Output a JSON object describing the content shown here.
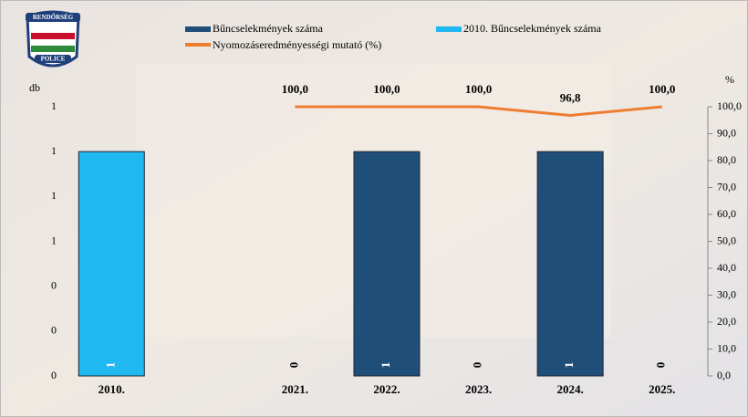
{
  "chart_data": {
    "type": "bar_line",
    "categories": [
      "2010.",
      null,
      "2021.",
      "2022.",
      "2023.",
      "2024.",
      "2025."
    ],
    "series": [
      {
        "name": "Bűncselekmények száma",
        "type": "bar",
        "color": "#1f4e79",
        "values": [
          null,
          null,
          0,
          1,
          0,
          1,
          0
        ]
      },
      {
        "name": "2010. Bűncselekmények száma",
        "type": "bar",
        "color": "#1fb8f0",
        "values": [
          1,
          null,
          null,
          null,
          null,
          null,
          null
        ]
      },
      {
        "name": "Nyomozáseredményességi mutató (%)",
        "type": "line",
        "axis": "y2",
        "color": "#ed7d31",
        "values": [
          null,
          null,
          100,
          100,
          100,
          96.8,
          100
        ],
        "value_labels": [
          null,
          null,
          "100,0",
          "100,0",
          "100,0",
          "96,8",
          "100,0"
        ]
      }
    ],
    "ylabel": "db",
    "y2label": "%",
    "ylim": [
      0,
      1.2
    ],
    "yticks": [
      0,
      {
        "value": 0.2,
        "label": "0"
      },
      {
        "value": 0.4,
        "label": "0"
      },
      {
        "value": 0.6,
        "label": "1"
      },
      {
        "value": 0.8,
        "label": "1"
      },
      {
        "value": 1,
        "label": "1"
      },
      {
        "value": 1.2,
        "label": "1"
      }
    ],
    "y2lim": [
      0,
      100
    ],
    "y2ticks": [
      {
        "value": 0,
        "label": "0,0"
      },
      {
        "value": 10,
        "label": "10,0"
      },
      {
        "value": 20,
        "label": "20,0"
      },
      {
        "value": 30,
        "label": "30,0"
      },
      {
        "value": 40,
        "label": "40,0"
      },
      {
        "value": 50,
        "label": "50,0"
      },
      {
        "value": 60,
        "label": "60,0"
      },
      {
        "value": 70,
        "label": "70,0"
      },
      {
        "value": 80,
        "label": "80,0"
      },
      {
        "value": 90,
        "label": "90,0"
      },
      {
        "value": 100,
        "label": "100,0"
      }
    ],
    "logo_text": [
      "RENDŐRSÉG",
      "POLICE"
    ]
  }
}
